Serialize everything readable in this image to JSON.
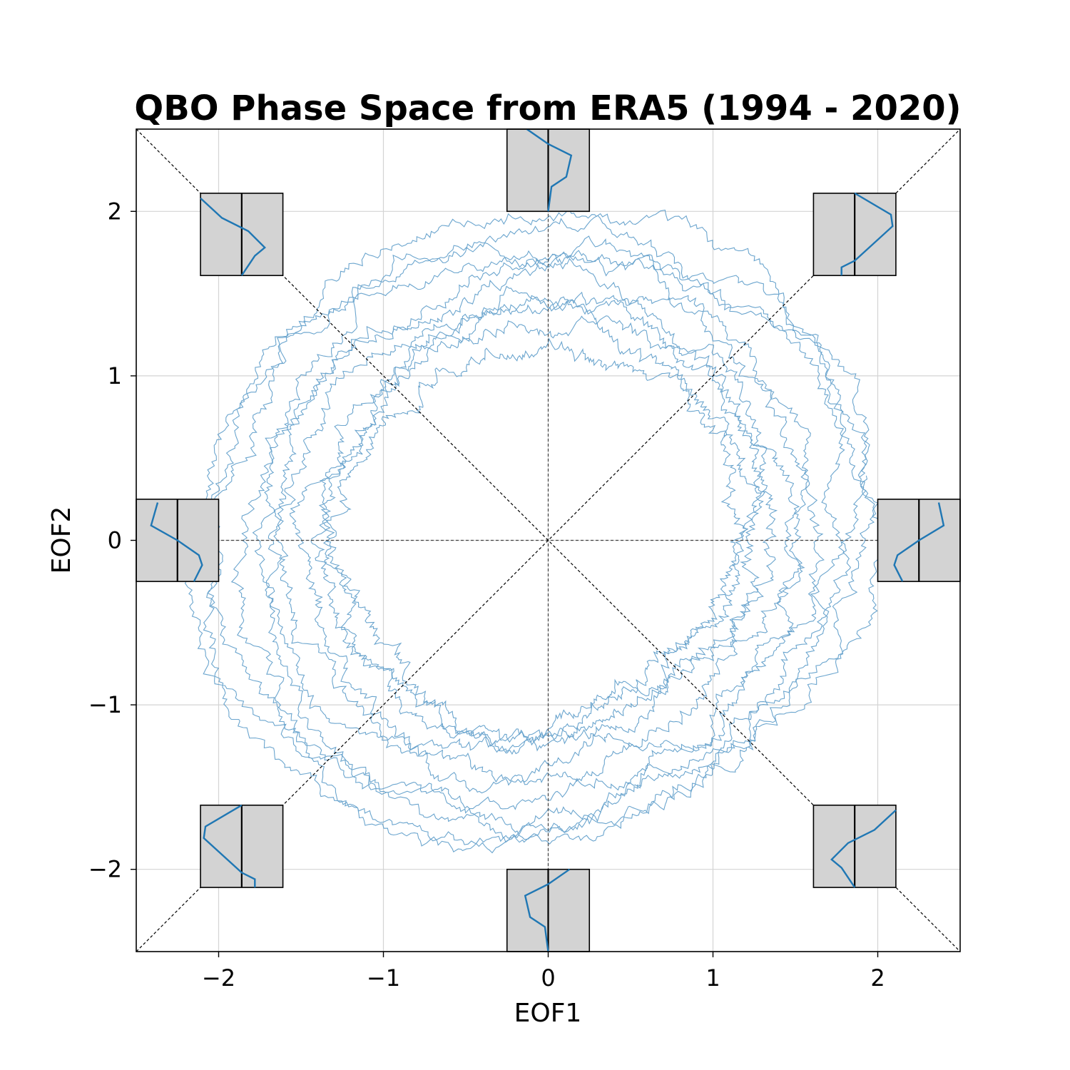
{
  "chart_data": {
    "type": "line",
    "title": "QBO Phase Space from ERA5 (1994 - 2020)",
    "xlabel": "EOF1",
    "ylabel": "EOF2",
    "xlim": [
      -2.5,
      2.5
    ],
    "ylim": [
      -2.5,
      2.5
    ],
    "grid": true,
    "xticks": [
      -2,
      -1,
      0,
      1,
      2
    ],
    "yticks": [
      -2,
      -1,
      0,
      1,
      2
    ],
    "xtick_labels": [
      "−2",
      "−1",
      "0",
      "1",
      "2"
    ],
    "ytick_labels": [
      "−2",
      "−1",
      "0",
      "1",
      "2"
    ],
    "trajectory_color": "#5b9bc9",
    "profile_color": "#1f77b4",
    "inset_fill": "#d3d3d3",
    "trajectory": {
      "cycles": 11,
      "radius_min": 1.2,
      "radius_max": 1.95
    },
    "insets": [
      {
        "phase": "E",
        "center": [
          2.25,
          0.0
        ],
        "profile": [
          [
            0.12,
            0.23
          ],
          [
            0.15,
            0.09
          ],
          [
            0.0,
            0.0
          ],
          [
            -0.13,
            -0.09
          ],
          [
            -0.15,
            -0.15
          ],
          [
            -0.1,
            -0.25
          ]
        ]
      },
      {
        "phase": "NE",
        "center": [
          1.86,
          1.86
        ],
        "profile": [
          [
            0.0,
            0.25
          ],
          [
            0.22,
            0.12
          ],
          [
            0.23,
            0.05
          ],
          [
            0.0,
            -0.16
          ],
          [
            -0.08,
            -0.2
          ],
          [
            -0.08,
            -0.25
          ]
        ]
      },
      {
        "phase": "N",
        "center": [
          0.0,
          2.25
        ],
        "profile": [
          [
            -0.13,
            0.25
          ],
          [
            0.0,
            0.16
          ],
          [
            0.14,
            0.09
          ],
          [
            0.11,
            -0.04
          ],
          [
            0.02,
            -0.1
          ],
          [
            0.0,
            -0.25
          ]
        ]
      },
      {
        "phase": "NW",
        "center": [
          -1.86,
          1.86
        ],
        "profile": [
          [
            -0.25,
            0.22
          ],
          [
            -0.12,
            0.1
          ],
          [
            0.04,
            0.02
          ],
          [
            0.14,
            -0.08
          ],
          [
            0.08,
            -0.13
          ],
          [
            0.0,
            -0.25
          ]
        ]
      },
      {
        "phase": "W",
        "center": [
          -2.25,
          0.0
        ],
        "profile": [
          [
            -0.12,
            0.23
          ],
          [
            -0.16,
            0.09
          ],
          [
            0.0,
            0.0
          ],
          [
            0.13,
            -0.09
          ],
          [
            0.15,
            -0.15
          ],
          [
            0.1,
            -0.25
          ]
        ]
      },
      {
        "phase": "SW",
        "center": [
          -1.86,
          -1.86
        ],
        "profile": [
          [
            0.0,
            0.25
          ],
          [
            -0.22,
            0.12
          ],
          [
            -0.23,
            0.05
          ],
          [
            0.0,
            -0.16
          ],
          [
            0.08,
            -0.2
          ],
          [
            0.08,
            -0.25
          ]
        ]
      },
      {
        "phase": "S",
        "center": [
          0.0,
          -2.25
        ],
        "profile": [
          [
            0.13,
            0.25
          ],
          [
            0.0,
            0.16
          ],
          [
            -0.14,
            0.09
          ],
          [
            -0.11,
            -0.04
          ],
          [
            -0.02,
            -0.1
          ],
          [
            0.0,
            -0.25
          ]
        ]
      },
      {
        "phase": "SE",
        "center": [
          1.86,
          -1.86
        ],
        "profile": [
          [
            0.25,
            0.22
          ],
          [
            0.12,
            0.1
          ],
          [
            -0.04,
            0.02
          ],
          [
            -0.14,
            -0.08
          ],
          [
            -0.08,
            -0.13
          ],
          [
            0.0,
            -0.25
          ]
        ]
      }
    ]
  }
}
